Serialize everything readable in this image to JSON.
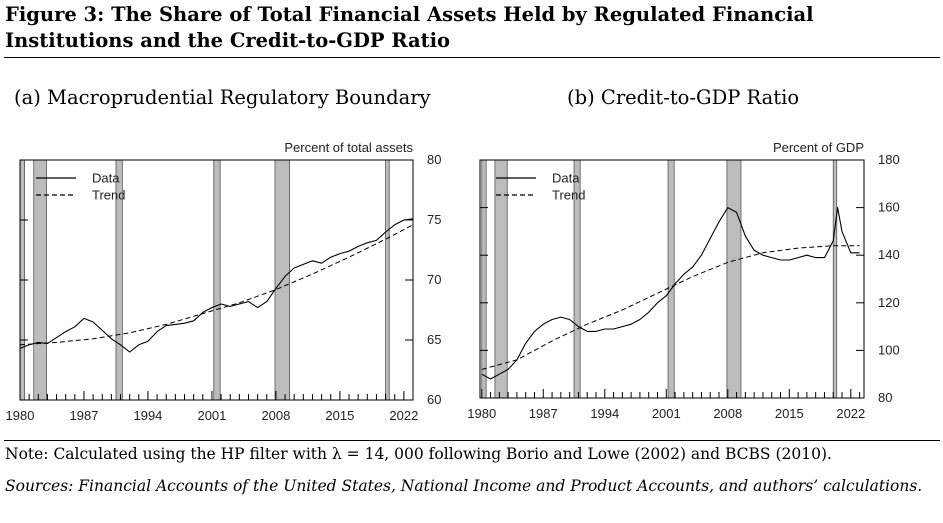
{
  "figure_title": "Figure 3: The Share of Total Financial Assets Held by Regulated Financial Institutions and the Credit-to-GDP Ratio",
  "note": "Note: Calculated using the HP filter with λ = 14, 000 following Borio and Lowe (2002) and BCBS (2010).",
  "sources": "Sources: Financial Accounts of the United States, National Income and Product Accounts, and authors’ calculations.",
  "colors": {
    "recession_shading": "#bcbcbc",
    "line": "#000000",
    "text": "#222222"
  },
  "chart_data": [
    {
      "type": "line",
      "panel_title": "(a) Macroprudential Regulatory Boundary",
      "unit_label": "Percent of total assets",
      "xlim": [
        1980,
        2023
      ],
      "ylim": [
        60,
        80
      ],
      "x_ticks": [
        "1980",
        "1987",
        "1994",
        "2001",
        "2008",
        "2015",
        "2022"
      ],
      "y_ticks": [
        "60",
        "65",
        "70",
        "75",
        "80"
      ],
      "y_axis_side": "right",
      "legend_placement": "top-left",
      "legend": [
        "Data",
        "Trend"
      ],
      "recessions": [
        [
          1980.0,
          1980.5
        ],
        [
          1981.5,
          1982.9
        ],
        [
          1990.5,
          1991.2
        ],
        [
          2001.2,
          2001.9
        ],
        [
          2007.9,
          2009.5
        ],
        [
          2020.0,
          2020.4
        ]
      ],
      "series": [
        {
          "name": "Data",
          "style": "solid",
          "x": [
            1980,
            1981,
            1982,
            1983,
            1984,
            1985,
            1986,
            1987,
            1988,
            1989,
            1990,
            1991,
            1992,
            1993,
            1994,
            1995,
            1996,
            1997,
            1998,
            1999,
            2000,
            2001,
            2002,
            2003,
            2004,
            2005,
            2006,
            2007,
            2008,
            2009,
            2010,
            2011,
            2012,
            2013,
            2014,
            2015,
            2016,
            2017,
            2018,
            2019,
            2020,
            2021,
            2022,
            2023
          ],
          "values": [
            64.3,
            64.6,
            64.8,
            64.7,
            65.2,
            65.7,
            66.1,
            66.8,
            66.5,
            65.8,
            65.1,
            64.6,
            64.0,
            64.6,
            64.9,
            65.7,
            66.2,
            66.3,
            66.4,
            66.6,
            67.3,
            67.7,
            68.0,
            67.8,
            68.0,
            68.2,
            67.7,
            68.2,
            69.3,
            70.3,
            71.0,
            71.3,
            71.6,
            71.4,
            71.9,
            72.2,
            72.4,
            72.8,
            73.1,
            73.3,
            74.0,
            74.6,
            75.0,
            75.1
          ]
        },
        {
          "name": "Trend",
          "style": "dashed",
          "x": [
            1980,
            1984,
            1988,
            1992,
            1996,
            2000,
            2004,
            2008,
            2012,
            2016,
            2020,
            2023
          ],
          "values": [
            64.6,
            64.8,
            65.1,
            65.6,
            66.3,
            67.2,
            68.1,
            69.2,
            70.5,
            71.9,
            73.4,
            74.6
          ]
        }
      ]
    },
    {
      "type": "line",
      "panel_title": "(b) Credit-to-GDP Ratio",
      "unit_label": "Percent of GDP",
      "xlim": [
        1979.8,
        2023.5
      ],
      "ylim": [
        80,
        180
      ],
      "x_ticks": [
        "1980",
        "1987",
        "1994",
        "2001",
        "2008",
        "2015",
        "2022"
      ],
      "y_ticks": [
        "80",
        "100",
        "120",
        "140",
        "160",
        "180"
      ],
      "y_axis_side": "right",
      "legend_placement": "top-left",
      "legend": [
        "Data",
        "Trend"
      ],
      "recessions": [
        [
          1980.0,
          1980.5
        ],
        [
          1981.5,
          1982.9
        ],
        [
          1990.5,
          1991.2
        ],
        [
          2001.2,
          2001.9
        ],
        [
          2007.9,
          2009.5
        ],
        [
          2020.0,
          2020.4
        ]
      ],
      "series": [
        {
          "name": "Data",
          "style": "solid",
          "x": [
            1980,
            1981,
            1982,
            1983,
            1984,
            1985,
            1986,
            1987,
            1988,
            1989,
            1990,
            1991,
            1992,
            1993,
            1994,
            1995,
            1996,
            1997,
            1998,
            1999,
            2000,
            2001,
            2002,
            2003,
            2004,
            2005,
            2006,
            2007,
            2008,
            2009,
            2010,
            2011,
            2012,
            2013,
            2014,
            2015,
            2016,
            2017,
            2018,
            2019,
            2020,
            2020.5,
            2021,
            2022,
            2023
          ],
          "values": [
            90,
            88,
            90,
            92,
            96,
            103,
            108,
            111,
            113,
            114,
            113,
            110,
            108,
            108,
            109,
            109,
            110,
            111,
            113,
            116,
            120,
            123,
            128,
            132,
            135,
            140,
            147,
            154,
            160,
            158,
            148,
            142,
            140,
            139,
            138,
            138,
            139,
            140,
            139,
            139,
            146,
            160,
            150,
            141,
            141
          ]
        },
        {
          "name": "Trend",
          "style": "dashed",
          "x": [
            1980,
            1984,
            1988,
            1992,
            1996,
            2000,
            2004,
            2008,
            2012,
            2016,
            2020,
            2023
          ],
          "values": [
            92,
            96,
            104,
            111,
            117,
            124,
            131,
            137,
            141,
            143,
            144,
            144
          ]
        }
      ]
    }
  ]
}
